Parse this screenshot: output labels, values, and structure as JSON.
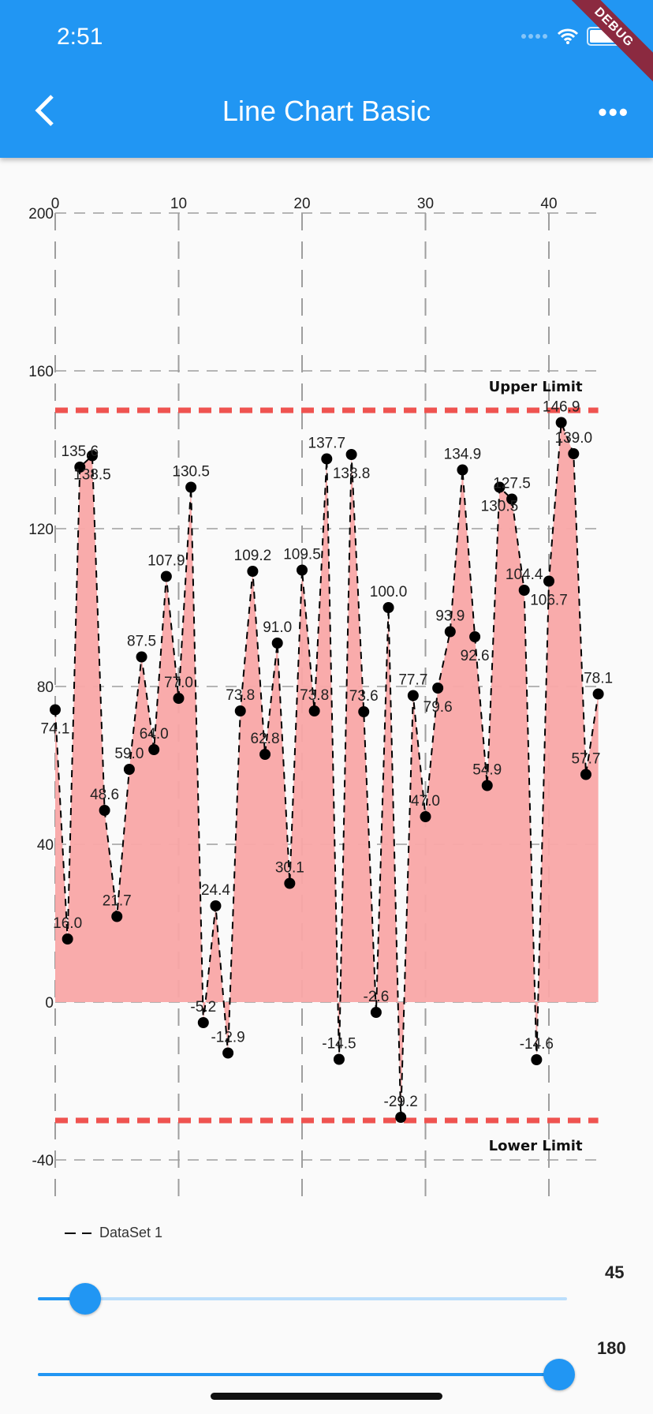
{
  "status_bar": {
    "time": "2:51"
  },
  "app_bar": {
    "title": "Line Chart Basic",
    "more_label": "•••",
    "debug_banner": "DEBUG"
  },
  "legend": {
    "label": "DataSet 1"
  },
  "sliders": [
    {
      "value": "45",
      "fraction": 0.09
    },
    {
      "value": "180",
      "fraction": 0.985
    }
  ],
  "chart_data": {
    "type": "line",
    "title": "",
    "x": [
      0,
      1,
      2,
      3,
      4,
      5,
      6,
      7,
      8,
      9,
      10,
      11,
      12,
      13,
      14,
      15,
      16,
      17,
      18,
      19,
      20,
      21,
      22,
      23,
      24,
      25,
      26,
      27,
      28,
      29,
      30,
      31,
      32,
      33,
      34,
      35,
      36,
      37,
      38,
      39,
      40,
      41,
      42,
      43,
      44
    ],
    "series": [
      {
        "name": "DataSet 1",
        "values": [
          74.1,
          16.0,
          135.6,
          138.5,
          48.6,
          21.7,
          59.0,
          87.5,
          64.0,
          107.9,
          77.0,
          130.5,
          -5.2,
          24.4,
          -12.9,
          73.8,
          109.2,
          62.8,
          91.0,
          30.1,
          109.5,
          73.8,
          137.7,
          -14.5,
          138.8,
          73.6,
          -2.6,
          100.0,
          -29.2,
          77.7,
          47.0,
          79.6,
          93.9,
          134.9,
          92.6,
          54.9,
          130.5,
          127.5,
          104.4,
          -14.6,
          106.7,
          146.9,
          139.0,
          57.7,
          78.1
        ]
      }
    ],
    "xlim": [
      0,
      44
    ],
    "ylim": [
      -40,
      200
    ],
    "xticks": [
      "0",
      "10",
      "20",
      "30",
      "40"
    ],
    "yticks": [
      "200",
      "160",
      "120",
      "80",
      "40",
      "0",
      "-40"
    ],
    "limit_lines": [
      {
        "label": "Upper Limit",
        "value": 150
      },
      {
        "label": "Lower Limit",
        "value": -30
      }
    ],
    "grid": true,
    "legend_position": "bottom-left",
    "colors": {
      "fill": "#f9a7a7",
      "line": "#000000",
      "limit": "#ef5350",
      "grid": "#9e9e9e"
    }
  }
}
